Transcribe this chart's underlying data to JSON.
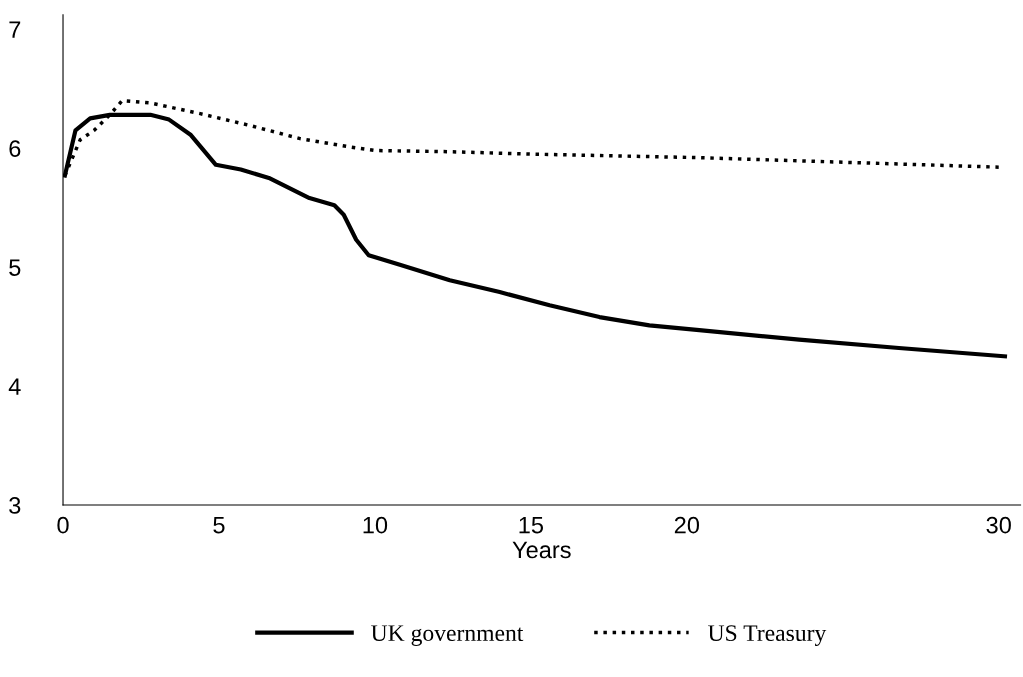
{
  "chart_data": {
    "type": "line",
    "xlabel": "Years",
    "xlim": [
      0,
      30.7
    ],
    "xticks": [
      0,
      5,
      10,
      15,
      20,
      30
    ],
    "ylim": [
      3,
      7.12
    ],
    "yticks": [
      3,
      4,
      5,
      6,
      7
    ],
    "grid": false,
    "legend": "bottom",
    "marker": "none",
    "series": [
      {
        "name": "UK government",
        "color": "#000000",
        "line_style": "solid",
        "x": [
          0.06,
          0.4,
          0.87,
          1.5,
          2.8,
          3.4,
          4.1,
          4.9,
          5.7,
          6.6,
          7.9,
          8.7,
          9.0,
          9.4,
          9.8,
          10.8,
          12.4,
          14.0,
          15.6,
          17.2,
          18.8,
          20.4,
          23.6,
          26.8,
          30.2
        ],
        "values": [
          5.77,
          6.15,
          6.25,
          6.28,
          6.28,
          6.24,
          6.11,
          5.86,
          5.82,
          5.75,
          5.58,
          5.52,
          5.44,
          5.23,
          5.1,
          5.02,
          4.89,
          4.79,
          4.68,
          4.58,
          4.51,
          4.47,
          4.39,
          4.32,
          4.25
        ]
      },
      {
        "name": "US Treasury",
        "color": "#000000",
        "line_style": "dotted",
        "x": [
          0.06,
          0.55,
          1.0,
          1.5,
          1.9,
          2.8,
          4.4,
          6.0,
          7.6,
          9.2,
          10.0,
          12.4,
          15.0,
          20.4,
          25.2,
          30.0
        ],
        "values": [
          5.77,
          6.07,
          6.15,
          6.28,
          6.4,
          6.38,
          6.29,
          6.19,
          6.08,
          6.01,
          5.98,
          5.97,
          5.95,
          5.92,
          5.88,
          5.84
        ]
      }
    ]
  }
}
